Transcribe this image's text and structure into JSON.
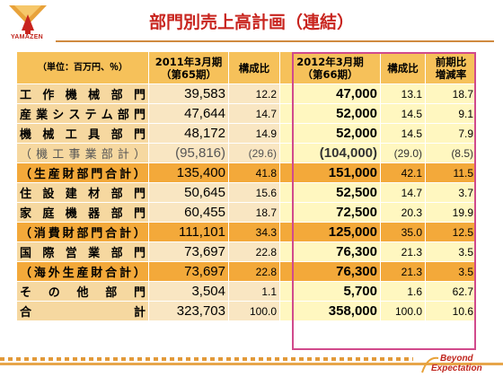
{
  "brand": {
    "name": "YAMAZEN",
    "tagline_line1": "Beyond",
    "tagline_line2": "Expectation",
    "accent": "#c8241e"
  },
  "title": "部門別売上高計画（連結）",
  "table": {
    "headers": {
      "unit": "（単位：百万円、％）",
      "fy2011_line1": "2011年3月期",
      "fy2011_line2": "（第65期）",
      "ratio": "構成比",
      "fy2012_line1": "2012年3月期",
      "fy2012_line2": "（第66期）",
      "ratio2": "構成比",
      "yoy_line1": "前期比",
      "yoy_line2": "増減率"
    },
    "rows": [
      {
        "name": "工作機械部門",
        "v2011": "39,583",
        "r2011": "12.2",
        "v2012": "47,000",
        "r2012": "13.1",
        "yoy": "18.7",
        "style": "normal"
      },
      {
        "name": "産業システム部門",
        "v2011": "47,644",
        "r2011": "14.7",
        "v2012": "52,000",
        "r2012": "14.5",
        "yoy": "9.1",
        "style": "normal"
      },
      {
        "name": "機械工具部門",
        "v2011": "48,172",
        "r2011": "14.9",
        "v2012": "52,000",
        "r2012": "14.5",
        "yoy": "7.9",
        "style": "normal"
      },
      {
        "name": "（機工事業部計）",
        "v2011": "(95,816)",
        "r2011": "(29.6)",
        "v2012": "(104,000)",
        "r2012": "(29.0)",
        "yoy": "(8.5)",
        "style": "mach"
      },
      {
        "name": "（生産財部門合計）",
        "v2011": "135,400",
        "r2011": "41.8",
        "v2012": "151,000",
        "r2012": "42.1",
        "yoy": "11.5",
        "style": "sub"
      },
      {
        "name": "住設建材部門",
        "v2011": "50,645",
        "r2011": "15.6",
        "v2012": "52,500",
        "r2012": "14.7",
        "yoy": "3.7",
        "style": "normal"
      },
      {
        "name": "家庭機器部門",
        "v2011": "60,455",
        "r2011": "18.7",
        "v2012": "72,500",
        "r2012": "20.3",
        "yoy": "19.9",
        "style": "normal"
      },
      {
        "name": "（消費財部門合計）",
        "v2011": "111,101",
        "r2011": "34.3",
        "v2012": "125,000",
        "r2012": "35.0",
        "yoy": "12.5",
        "style": "sub"
      },
      {
        "name": "国際営業部門",
        "v2011": "73,697",
        "r2011": "22.8",
        "v2012": "76,300",
        "r2012": "21.3",
        "yoy": "3.5",
        "style": "normal"
      },
      {
        "name": "（海外生産財合計）",
        "v2011": "73,697",
        "r2011": "22.8",
        "v2012": "76,300",
        "r2012": "21.3",
        "yoy": "3.5",
        "style": "sub"
      },
      {
        "name": "その他部門",
        "v2011": "3,504",
        "r2011": "1.1",
        "v2012": "5,700",
        "r2012": "1.6",
        "yoy": "62.7",
        "style": "normal"
      },
      {
        "name": "合計",
        "v2011": "323,703",
        "r2011": "100.0",
        "v2012": "358,000",
        "r2012": "100.0",
        "yoy": "10.6",
        "style": "normal"
      }
    ]
  }
}
